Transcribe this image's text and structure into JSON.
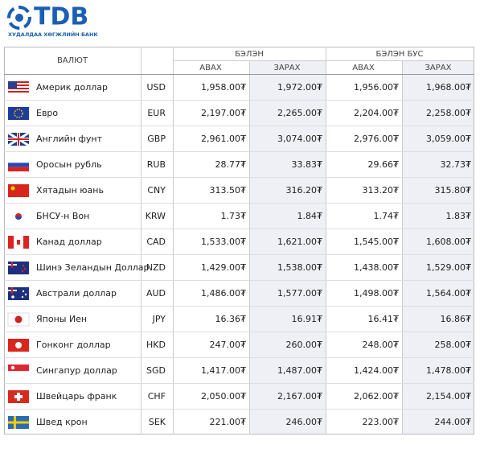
{
  "header": {
    "logo": "TDB",
    "bank_name": "ХУДАЛДАА ХӨГЖЛИЙН БАНК"
  },
  "table": {
    "currency": "ВАЛЮТ",
    "cash": "БЭЛЭН",
    "noncash": "БЭЛЭН БУС",
    "subheaders": [
      "АВАХ",
      "ЗАРАХ",
      "АВАХ",
      "ЗАРАХ"
    ],
    "rows": [
      [
        "Америк доллар",
        "USD",
        "1,958.00₮",
        "1,972.00₮",
        "1,956.00₮",
        "1,968.00₮"
      ],
      [
        "Евро",
        "EUR",
        "2,197.00₮",
        "2,265.00₮",
        "2,204.00₮",
        "2,258.00₮"
      ],
      [
        "Английн фунт",
        "GBP",
        "2,961.00₮",
        "3,074.00₮",
        "2,976.00₮",
        "3,059.00₮"
      ],
      [
        "Оросын рубль",
        "RUB",
        "28.77₮",
        "33.83₮",
        "29.66₮",
        "32.73₮"
      ],
      [
        "Хятадын юань",
        "CNY",
        "313.50₮",
        "316.20₮",
        "313.20₮",
        "315.80₮"
      ],
      [
        "БНСУ-н Вон",
        "KRW",
        "1.73₮",
        "1.84₮",
        "1.74₮",
        "1.83₮"
      ],
      [
        "Канад доллар",
        "CAD",
        "1,533.00₮",
        "1,621.00₮",
        "1,545.00₮",
        "1,608.00₮"
      ],
      [
        "Шинэ Зеландын Доллар",
        "NZD",
        "1,429.00₮",
        "1,538.00₮",
        "1,438.00₮",
        "1,529.00₮"
      ],
      [
        "Австрали доллар",
        "AUD",
        "1,486.00₮",
        "1,577.00₮",
        "1,498.00₮",
        "1,564.00₮"
      ],
      [
        "Японы Иен",
        "JPY",
        "16.36₮",
        "16.91₮",
        "16.41₮",
        "16.86₮"
      ],
      [
        "Гонконг доллар",
        "HKD",
        "247.00₮",
        "260.00₮",
        "248.00₮",
        "258.00₮"
      ],
      [
        "Сингапур доллар",
        "SGD",
        "1,417.00₮",
        "1,487.00₮",
        "1,424.00₮",
        "1,478.00₮"
      ],
      [
        "Швейцарь франк",
        "CHF",
        "2,050.00₮",
        "2,167.00₮",
        "2,062.00₮",
        "2,154.00₮"
      ],
      [
        "Швед крон",
        "SEK",
        "221.00₮",
        "246.00₮",
        "223.00₮",
        "244.00₮"
      ]
    ]
  }
}
